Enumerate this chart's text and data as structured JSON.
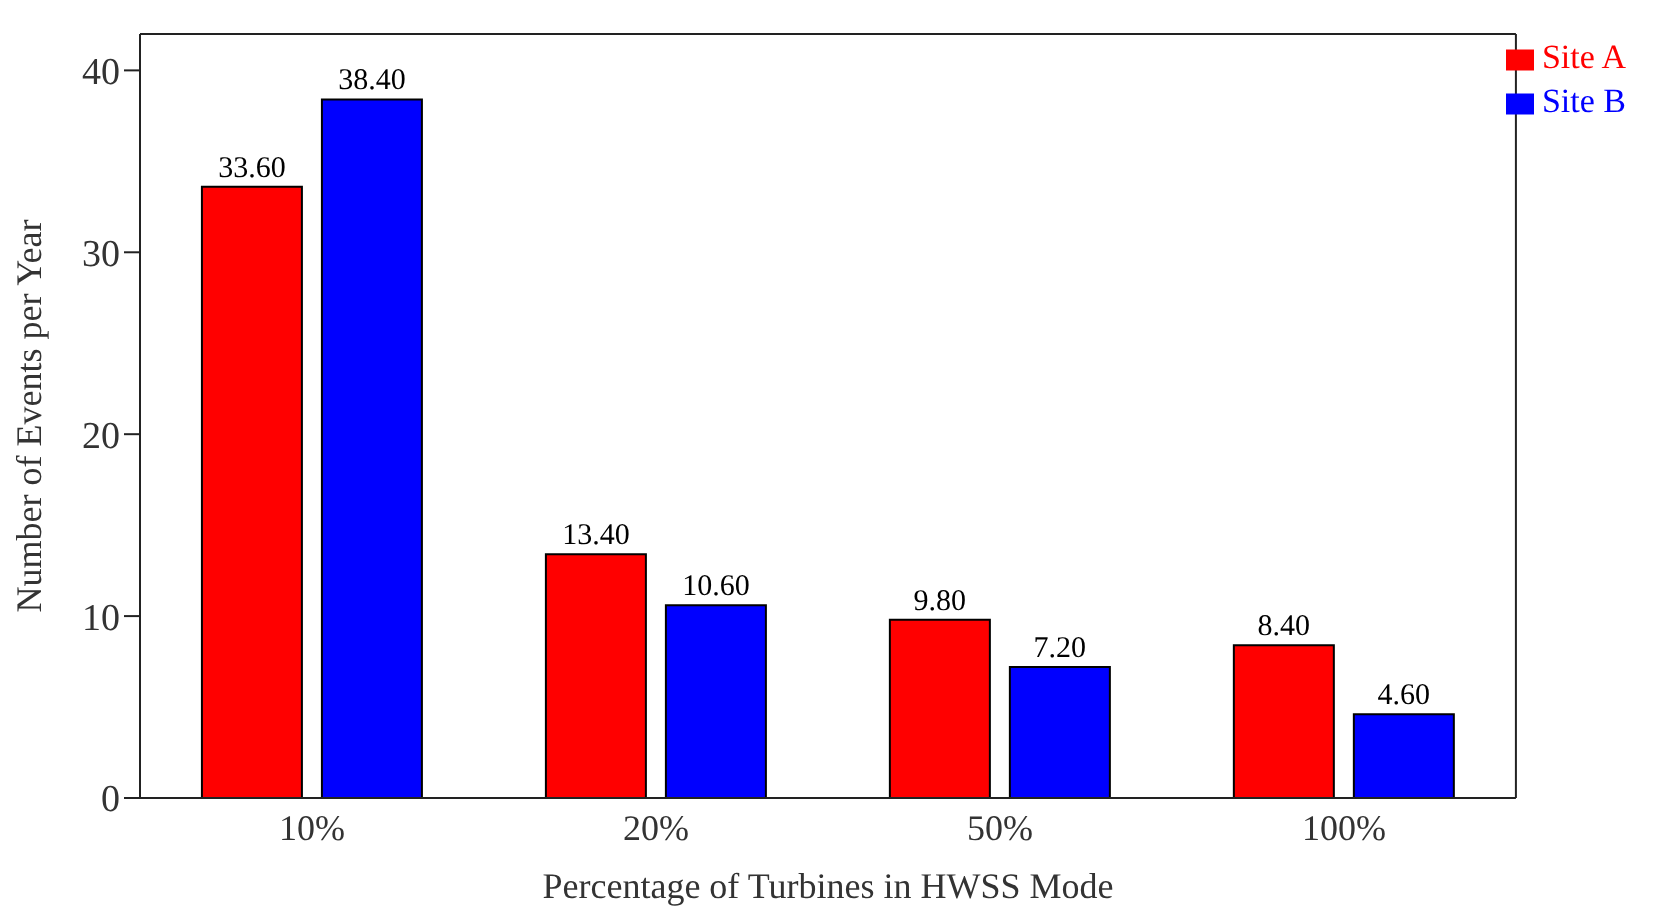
{
  "chart_data": {
    "type": "bar",
    "xlabel": "Percentage of Turbines in HWSS Mode",
    "ylabel": "Number of Events per Year",
    "categories": [
      "10%",
      "20%",
      "50%",
      "100%"
    ],
    "series": [
      {
        "name": "Site A",
        "color": "#ff0000",
        "values": [
          33.6,
          13.4,
          9.8,
          8.4
        ],
        "value_labels": [
          "33.60",
          "13.40",
          "9.80",
          "8.40"
        ]
      },
      {
        "name": "Site B",
        "color": "#0000ff",
        "values": [
          38.4,
          10.6,
          7.2,
          4.6
        ],
        "value_labels": [
          "38.40",
          "10.60",
          "7.20",
          "4.60"
        ]
      }
    ],
    "ylim": [
      0,
      42
    ],
    "yticks": [
      0,
      10,
      20,
      30,
      40
    ],
    "grid": false,
    "legend": "top right"
  }
}
